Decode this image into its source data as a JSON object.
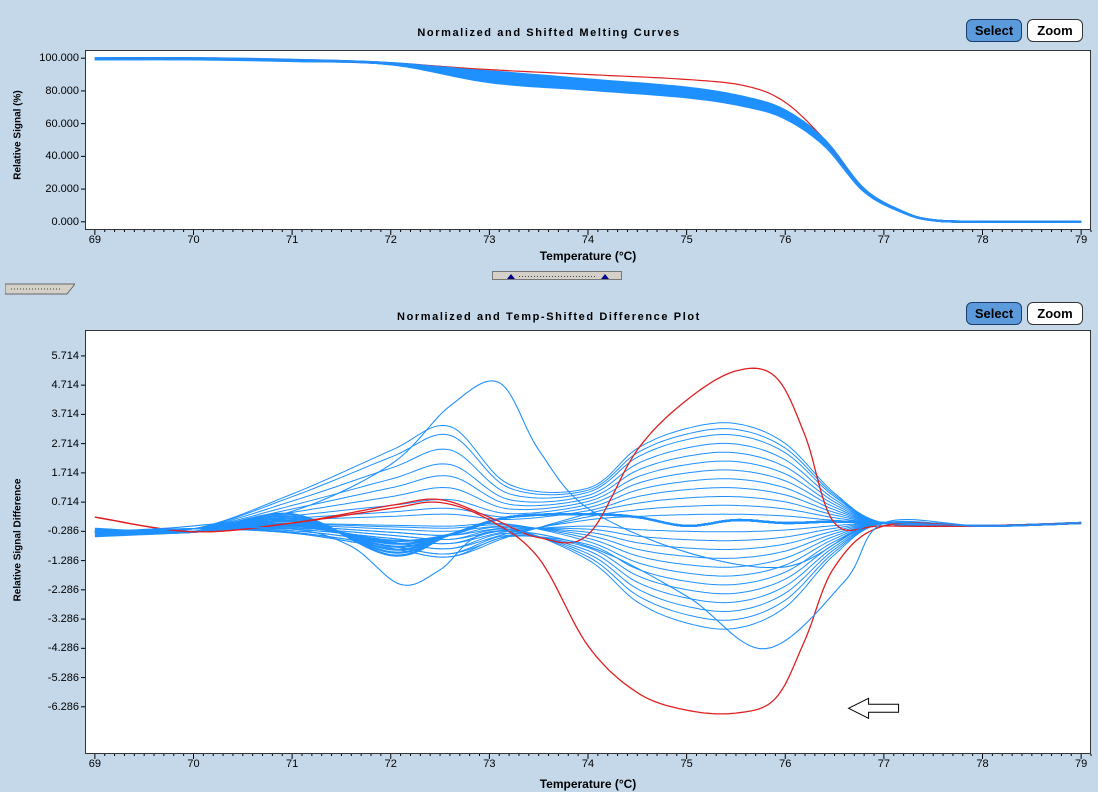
{
  "top": {
    "title": "Normalized and Shifted Melting Curves",
    "select_label": "Select",
    "zoom_label": "Zoom"
  },
  "bottom": {
    "title": "Normalized and Temp-Shifted Difference Plot",
    "select_label": "Select",
    "zoom_label": "Zoom"
  },
  "colors": {
    "series_blue": "#1e90ff",
    "highlight_red": "#e02020",
    "select_active": "#5b9bdc"
  },
  "chart_data": [
    {
      "type": "line",
      "title": "Normalized and Shifted Melting Curves",
      "xlabel": "Temperature (°C)",
      "ylabel": "Relative Signal (%)",
      "xlim": [
        68.9,
        79.1
      ],
      "ylim": [
        -5,
        105
      ],
      "x_ticks": [
        "69",
        "70",
        "71",
        "72",
        "73",
        "74",
        "75",
        "76",
        "77",
        "78",
        "79"
      ],
      "y_ticks": [
        "0.000",
        "20.000",
        "40.000",
        "60.000",
        "80.000",
        "100.000"
      ],
      "y_tick_values": [
        0,
        20,
        40,
        60,
        80,
        100
      ],
      "grid": false,
      "series": [
        {
          "color": "blue_band",
          "x": [
            69,
            70,
            71,
            72,
            73,
            74,
            75,
            75.6,
            76,
            76.4,
            76.8,
            77.2,
            77.5,
            78,
            79
          ],
          "values": [
            100,
            100,
            99,
            97,
            92,
            87,
            82,
            76,
            68,
            50,
            20,
            6,
            1,
            0,
            0
          ]
        },
        {
          "color": "red",
          "x": [
            69,
            70,
            71,
            72,
            73,
            74,
            75,
            75.6,
            76,
            76.4,
            76.8,
            77.2,
            77.5,
            78,
            79
          ],
          "values": [
            100,
            100,
            99,
            97,
            93,
            90,
            87,
            83,
            73,
            50,
            20,
            6,
            1,
            0,
            0
          ]
        }
      ]
    },
    {
      "type": "line",
      "title": "Normalized and Temp-Shifted Difference Plot",
      "xlabel": "Temperature (°C)",
      "ylabel": "Relative Signal Difference",
      "xlim": [
        68.9,
        79.1
      ],
      "ylim": [
        -7.9,
        6.6
      ],
      "x_ticks": [
        "69",
        "70",
        "71",
        "72",
        "73",
        "74",
        "75",
        "76",
        "77",
        "78",
        "79"
      ],
      "y_ticks": [
        "5.714",
        "4.714",
        "3.714",
        "2.714",
        "1.714",
        "0.714",
        "-0.286",
        "-1.286",
        "-2.286",
        "-3.286",
        "-4.286",
        "-5.286",
        "-6.286"
      ],
      "y_tick_values": [
        5.714,
        4.714,
        3.714,
        2.714,
        1.714,
        0.714,
        -0.286,
        -1.286,
        -2.286,
        -3.286,
        -4.286,
        -5.286,
        -6.286
      ],
      "grid": false,
      "annotation": {
        "type": "arrow",
        "x": 76.5,
        "y": -6.2,
        "direction": "left"
      },
      "series": [
        {
          "color": "red",
          "x": [
            69,
            70,
            71,
            72,
            72.5,
            73,
            73.5,
            74,
            74.5,
            75,
            75.5,
            75.9,
            76.2,
            76.5,
            77,
            78,
            79
          ],
          "values": [
            0.2,
            -0.3,
            0.0,
            0.6,
            0.8,
            0.2,
            -0.5,
            -0.4,
            2.5,
            4.2,
            5.2,
            5.0,
            3.0,
            0.0,
            -0.1,
            -0.1,
            0.0
          ]
        },
        {
          "color": "red",
          "x": [
            69,
            70,
            71,
            72,
            72.5,
            73,
            73.5,
            74,
            74.5,
            75,
            75.5,
            75.9,
            76.2,
            76.5,
            77,
            78,
            79
          ],
          "values": [
            0.2,
            -0.3,
            0.0,
            0.5,
            0.7,
            0.1,
            -1.2,
            -4.2,
            -5.8,
            -6.4,
            -6.5,
            -6.0,
            -4.0,
            -1.5,
            -0.1,
            -0.1,
            0.0
          ]
        },
        {
          "color": "blue",
          "x": [
            69,
            70,
            71,
            72,
            72.6,
            73.1,
            73.5,
            74,
            75,
            76,
            76.7,
            77,
            78,
            79
          ],
          "values": [
            -0.3,
            -0.1,
            0.4,
            2.0,
            4.0,
            4.8,
            2.5,
            0.5,
            -1.0,
            -1.5,
            -0.3,
            0.0,
            -0.1,
            0.0
          ]
        },
        {
          "color": "blue",
          "x": [
            69,
            70,
            71,
            71.6,
            72.1,
            72.5,
            73,
            74,
            75,
            75.8,
            76.6,
            77,
            78,
            79
          ],
          "values": [
            -0.3,
            -0.2,
            -0.2,
            -0.8,
            -2.1,
            -1.6,
            -0.3,
            -0.8,
            -2.5,
            -4.3,
            -2.0,
            0.0,
            -0.1,
            0.0
          ]
        }
      ],
      "bundle": {
        "note": "family of blue curves",
        "x": [
          69,
          70,
          71,
          72,
          72.6,
          73.2,
          74,
          74.5,
          75,
          75.5,
          76,
          76.5,
          77,
          78,
          79
        ],
        "amp_left": [
          3.3,
          3.0,
          2.5,
          2.0,
          1.6,
          1.2,
          0.8,
          0.5,
          0.3
        ],
        "amp_right": [
          3.4,
          3.2,
          3.0,
          2.7,
          2.4,
          2.1,
          1.8,
          1.5,
          1.2,
          0.9,
          0.6,
          0.3,
          -0.3,
          -0.6,
          -0.9,
          -1.2,
          -1.5,
          -1.8,
          -2.1,
          -2.4,
          -2.7,
          -3.0,
          -3.3,
          -3.6
        ]
      }
    }
  ]
}
